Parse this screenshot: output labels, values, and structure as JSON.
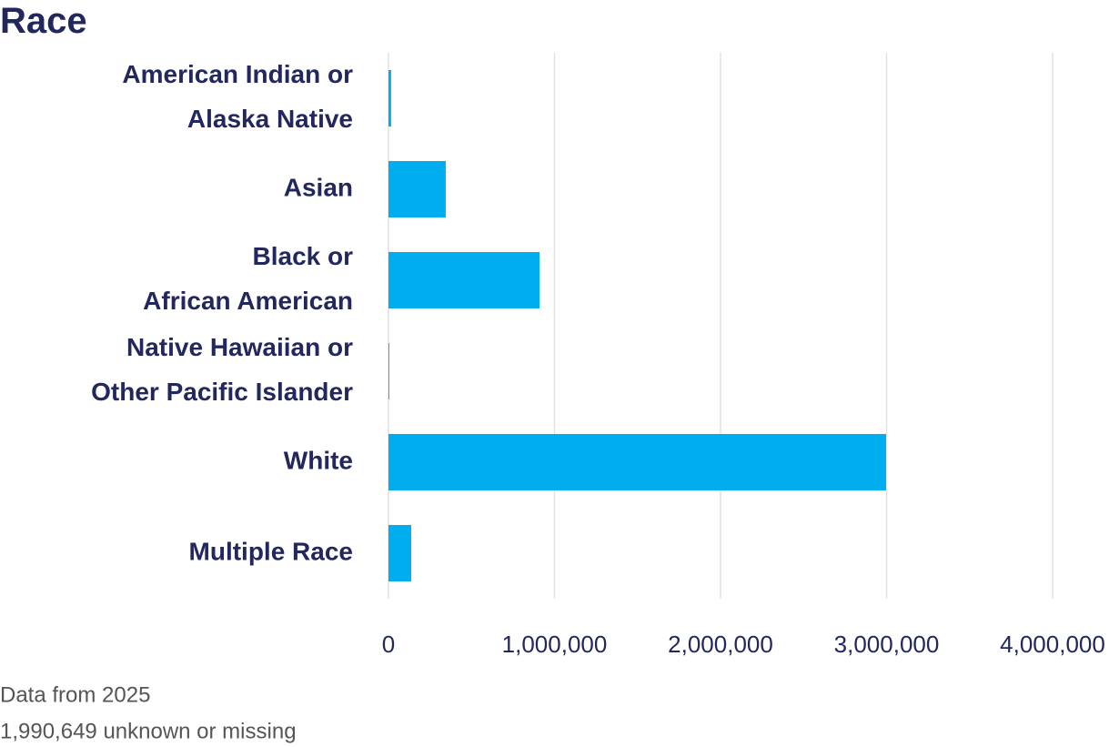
{
  "chart_data": {
    "type": "bar",
    "orientation": "horizontal",
    "title": "Race",
    "categories": [
      [
        "American Indian or",
        "Alaska Native"
      ],
      [
        "Asian"
      ],
      [
        "Black or",
        "African American"
      ],
      [
        "Native Hawaiian or",
        "Other Pacific Islander"
      ],
      [
        "White"
      ],
      [
        "Multiple Race"
      ]
    ],
    "values": [
      16000,
      345000,
      910000,
      5000,
      2997000,
      137000
    ],
    "color": "#00aeef",
    "xlim": [
      0,
      4000000
    ],
    "xticks": [
      0,
      {
        "value": 1000000,
        "label": "1,000,000"
      },
      {
        "value": 2000000,
        "label": "2,000,000"
      },
      {
        "value": 3000000,
        "label": "3,000,000"
      },
      {
        "value": 4000000,
        "label": "4,000,000"
      }
    ],
    "grid": true,
    "notes": [
      "Data from 2025",
      "1,990,649 unknown or missing"
    ]
  }
}
